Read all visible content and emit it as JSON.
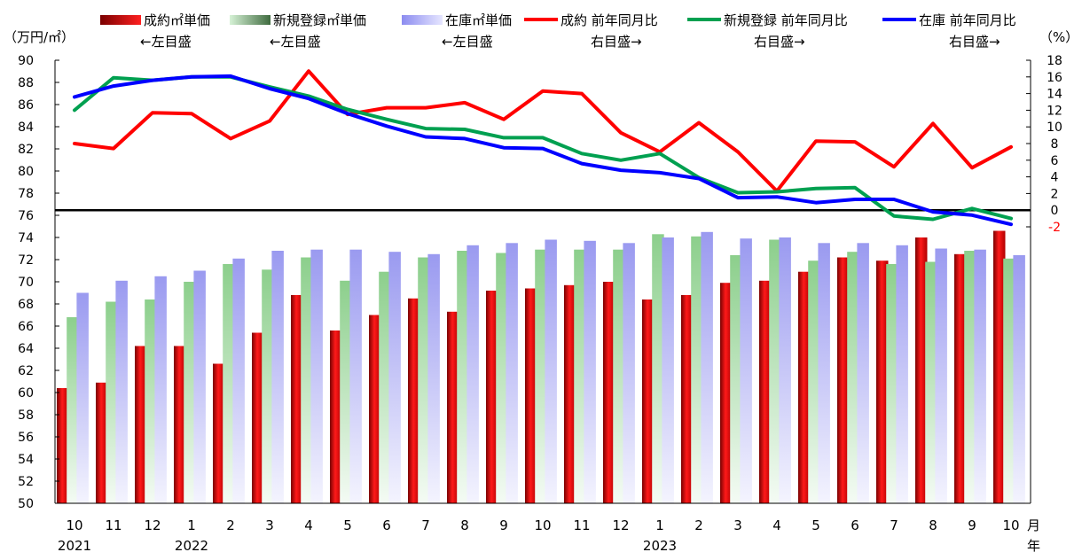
{
  "chart_data": {
    "type": "bar",
    "left_axis_label": "（万円/㎡）",
    "right_axis_label": "（%）",
    "x_unit_month": "月",
    "x_unit_year": "年",
    "months": [
      "10",
      "11",
      "12",
      "1",
      "2",
      "3",
      "4",
      "5",
      "6",
      "7",
      "8",
      "9",
      "10",
      "11",
      "12",
      "1",
      "2",
      "3",
      "4",
      "5",
      "6",
      "7",
      "8",
      "9",
      "10"
    ],
    "year_labels": [
      {
        "index": 0,
        "text": "2021"
      },
      {
        "index": 3,
        "text": "2022"
      },
      {
        "index": 15,
        "text": "2023"
      }
    ],
    "ylim_left": [
      50,
      90
    ],
    "yticks_left": [
      50,
      52,
      54,
      56,
      58,
      60,
      62,
      64,
      66,
      68,
      70,
      72,
      74,
      76,
      78,
      80,
      82,
      84,
      86,
      88,
      90
    ],
    "ylim_right": [
      -2,
      18
    ],
    "yticks_right": [
      -2,
      0,
      2,
      4,
      6,
      8,
      10,
      12,
      14,
      16,
      18
    ],
    "zero_line_right": 0,
    "legend": {
      "placement": "top",
      "items": [
        {
          "label": "成約㎡単価",
          "sub": "←左目盛",
          "kind": "bar",
          "color": "#e60000"
        },
        {
          "label": "新規登録㎡単価",
          "sub": "←左目盛",
          "kind": "bar",
          "color": "#9fd79f"
        },
        {
          "label": "在庫㎡単価",
          "sub": "←左目盛",
          "kind": "bar",
          "color": "#a8a8f0"
        },
        {
          "label": "成約 前年同月比",
          "sub": "右目盛→",
          "kind": "line",
          "color": "#ff0000"
        },
        {
          "label": "新規登録 前年同月比",
          "sub": "右目盛→",
          "kind": "line",
          "color": "#00a050"
        },
        {
          "label": "在庫 前年同月比",
          "sub": "右目盛→",
          "kind": "line",
          "color": "#0000ff"
        }
      ]
    },
    "bar_series": [
      {
        "name": "成約㎡単価",
        "color": "#e60000",
        "values": [
          60.4,
          60.9,
          64.2,
          64.2,
          62.6,
          65.4,
          68.8,
          65.6,
          67.0,
          68.5,
          67.3,
          69.2,
          69.4,
          69.7,
          70.0,
          68.4,
          68.8,
          69.9,
          70.1,
          70.9,
          72.2,
          71.9,
          74.0,
          72.5,
          74.6
        ]
      },
      {
        "name": "新規登録㎡単価",
        "color": "#9fd79f",
        "values": [
          66.8,
          68.2,
          68.4,
          70.0,
          71.6,
          71.1,
          72.2,
          70.1,
          70.9,
          72.2,
          72.8,
          72.6,
          72.9,
          72.9,
          72.9,
          74.3,
          74.1,
          72.4,
          73.8,
          71.9,
          72.7,
          71.6,
          71.8,
          72.8,
          72.1
        ]
      },
      {
        "name": "在庫㎡単価",
        "color": "#a8a8f0",
        "values": [
          69.0,
          70.1,
          70.5,
          71.0,
          72.1,
          72.8,
          72.9,
          72.9,
          72.7,
          72.5,
          73.3,
          73.5,
          73.8,
          73.7,
          73.5,
          74.0,
          74.5,
          73.9,
          74.0,
          73.5,
          73.5,
          73.3,
          73.0,
          72.9,
          72.4
        ]
      }
    ],
    "line_series": [
      {
        "name": "成約 前年同月比",
        "color": "#ff0000",
        "values": [
          8.0,
          7.4,
          11.7,
          11.6,
          8.6,
          10.7,
          16.7,
          11.5,
          12.3,
          12.3,
          12.9,
          10.9,
          14.3,
          14.0,
          9.3,
          7.0,
          10.5,
          7.0,
          2.3,
          8.3,
          8.2,
          5.2,
          10.4,
          5.1,
          7.6
        ]
      },
      {
        "name": "新規登録 前年同月比",
        "color": "#00a050",
        "values": [
          12.0,
          15.9,
          15.6,
          16.0,
          16.0,
          14.8,
          13.7,
          12.1,
          10.9,
          9.8,
          9.7,
          8.7,
          8.7,
          6.8,
          6.0,
          6.8,
          3.9,
          2.1,
          2.2,
          2.6,
          2.7,
          -0.7,
          -1.1,
          0.2,
          -1.0
        ]
      },
      {
        "name": "在庫 前年同月比",
        "color": "#0000ff",
        "values": [
          13.6,
          14.9,
          15.6,
          16.0,
          16.1,
          14.6,
          13.4,
          11.6,
          10.1,
          8.8,
          8.6,
          7.5,
          7.4,
          5.6,
          4.8,
          4.5,
          3.8,
          1.5,
          1.6,
          0.9,
          1.3,
          1.3,
          -0.2,
          -0.6,
          -1.7
        ]
      }
    ]
  }
}
